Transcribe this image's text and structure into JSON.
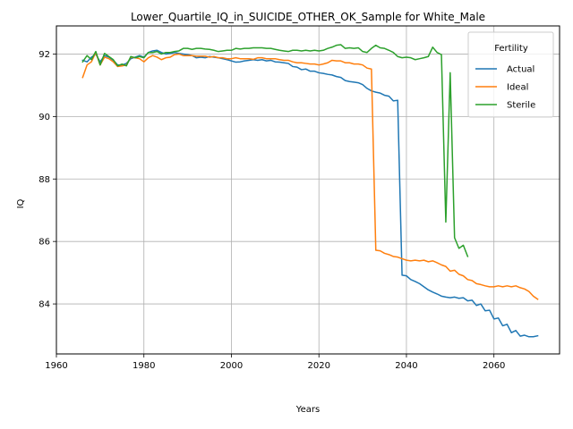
{
  "chart_data": {
    "type": "line",
    "title": "Lower_Quartile_IQ_in_SUICIDE_OTHER_OK_Sample for White_Male",
    "xlabel": "Years",
    "ylabel": "IQ",
    "xlim": [
      1960,
      2075
    ],
    "ylim": [
      82.4,
      92.9
    ],
    "xticks": [
      1960,
      1980,
      2000,
      2020,
      2040,
      2060
    ],
    "yticks": [
      84,
      86,
      88,
      90,
      92
    ],
    "grid": true,
    "legend": {
      "title": "Fertility",
      "position": "top-right"
    },
    "series": [
      {
        "name": "Actual",
        "color": "#1f77b4",
        "points": [
          [
            1966,
            91.8
          ],
          [
            1967,
            91.75
          ],
          [
            1968,
            91.9
          ],
          [
            1969,
            92.0
          ],
          [
            1970,
            91.75
          ],
          [
            1971,
            91.95
          ],
          [
            1972,
            91.9
          ],
          [
            1973,
            91.8
          ],
          [
            1974,
            91.65
          ],
          [
            1975,
            91.65
          ],
          [
            1976,
            91.7
          ],
          [
            1977,
            91.85
          ],
          [
            1978,
            91.9
          ],
          [
            1979,
            91.95
          ],
          [
            1980,
            91.9
          ],
          [
            1981,
            92.05
          ],
          [
            1982,
            92.1
          ],
          [
            1983,
            92.12
          ],
          [
            1984,
            92.05
          ],
          [
            1985,
            92.0
          ],
          [
            1986,
            92.02
          ],
          [
            1987,
            92.05
          ],
          [
            1988,
            92.02
          ],
          [
            1989,
            92.0
          ],
          [
            1990,
            91.98
          ],
          [
            1991,
            91.95
          ],
          [
            1992,
            91.88
          ],
          [
            1993,
            91.9
          ],
          [
            1994,
            91.88
          ],
          [
            1995,
            91.92
          ],
          [
            1996,
            91.9
          ],
          [
            1997,
            91.88
          ],
          [
            1998,
            91.85
          ],
          [
            1999,
            91.82
          ],
          [
            2000,
            91.78
          ],
          [
            2001,
            91.74
          ],
          [
            2002,
            91.75
          ],
          [
            2003,
            91.78
          ],
          [
            2004,
            91.8
          ],
          [
            2005,
            91.82
          ],
          [
            2006,
            91.8
          ],
          [
            2007,
            91.82
          ],
          [
            2008,
            91.78
          ],
          [
            2009,
            91.8
          ],
          [
            2010,
            91.75
          ],
          [
            2011,
            91.74
          ],
          [
            2012,
            91.72
          ],
          [
            2013,
            91.7
          ],
          [
            2014,
            91.6
          ],
          [
            2015,
            91.58
          ],
          [
            2016,
            91.5
          ],
          [
            2017,
            91.52
          ],
          [
            2018,
            91.45
          ],
          [
            2019,
            91.45
          ],
          [
            2020,
            91.4
          ],
          [
            2021,
            91.38
          ],
          [
            2022,
            91.35
          ],
          [
            2023,
            91.33
          ],
          [
            2024,
            91.28
          ],
          [
            2025,
            91.25
          ],
          [
            2026,
            91.15
          ],
          [
            2027,
            91.12
          ],
          [
            2028,
            91.1
          ],
          [
            2029,
            91.08
          ],
          [
            2030,
            91.02
          ],
          [
            2031,
            90.9
          ],
          [
            2032,
            90.82
          ],
          [
            2033,
            90.78
          ],
          [
            2034,
            90.75
          ],
          [
            2035,
            90.68
          ],
          [
            2036,
            90.65
          ],
          [
            2037,
            90.5
          ],
          [
            2038,
            90.52
          ],
          [
            2039,
            84.92
          ],
          [
            2040,
            84.9
          ],
          [
            2041,
            84.78
          ],
          [
            2042,
            84.72
          ],
          [
            2043,
            84.65
          ],
          [
            2044,
            84.55
          ],
          [
            2045,
            84.45
          ],
          [
            2046,
            84.38
          ],
          [
            2047,
            84.32
          ],
          [
            2048,
            84.25
          ],
          [
            2049,
            84.22
          ],
          [
            2050,
            84.2
          ],
          [
            2051,
            84.22
          ],
          [
            2052,
            84.18
          ],
          [
            2053,
            84.2
          ],
          [
            2054,
            84.1
          ],
          [
            2055,
            84.12
          ],
          [
            2056,
            83.95
          ],
          [
            2057,
            84.0
          ],
          [
            2058,
            83.78
          ],
          [
            2059,
            83.8
          ],
          [
            2060,
            83.52
          ],
          [
            2061,
            83.55
          ],
          [
            2062,
            83.3
          ],
          [
            2063,
            83.35
          ],
          [
            2064,
            83.08
          ],
          [
            2065,
            83.15
          ],
          [
            2066,
            82.97
          ],
          [
            2067,
            83.0
          ],
          [
            2068,
            82.95
          ],
          [
            2069,
            82.95
          ],
          [
            2070,
            82.98
          ]
        ]
      },
      {
        "name": "Ideal",
        "color": "#ff7f0e",
        "points": [
          [
            1966,
            91.25
          ],
          [
            1967,
            91.65
          ],
          [
            1968,
            91.75
          ],
          [
            1969,
            92.05
          ],
          [
            1970,
            91.65
          ],
          [
            1971,
            91.9
          ],
          [
            1972,
            91.85
          ],
          [
            1973,
            91.75
          ],
          [
            1974,
            91.6
          ],
          [
            1975,
            91.62
          ],
          [
            1976,
            91.65
          ],
          [
            1977,
            91.9
          ],
          [
            1978,
            91.88
          ],
          [
            1979,
            91.85
          ],
          [
            1980,
            91.75
          ],
          [
            1981,
            91.88
          ],
          [
            1982,
            91.95
          ],
          [
            1983,
            91.9
          ],
          [
            1984,
            91.82
          ],
          [
            1985,
            91.88
          ],
          [
            1986,
            91.9
          ],
          [
            1987,
            91.98
          ],
          [
            1988,
            92.0
          ],
          [
            1989,
            91.95
          ],
          [
            1990,
            91.95
          ],
          [
            1991,
            91.95
          ],
          [
            1992,
            91.93
          ],
          [
            1993,
            91.93
          ],
          [
            1994,
            91.93
          ],
          [
            1995,
            91.9
          ],
          [
            1996,
            91.92
          ],
          [
            1997,
            91.88
          ],
          [
            1998,
            91.88
          ],
          [
            1999,
            91.85
          ],
          [
            2000,
            91.85
          ],
          [
            2001,
            91.88
          ],
          [
            2002,
            91.85
          ],
          [
            2003,
            91.85
          ],
          [
            2004,
            91.85
          ],
          [
            2005,
            91.83
          ],
          [
            2006,
            91.88
          ],
          [
            2007,
            91.88
          ],
          [
            2008,
            91.85
          ],
          [
            2009,
            91.85
          ],
          [
            2010,
            91.85
          ],
          [
            2011,
            91.82
          ],
          [
            2012,
            91.8
          ],
          [
            2013,
            91.8
          ],
          [
            2014,
            91.75
          ],
          [
            2015,
            91.72
          ],
          [
            2016,
            91.72
          ],
          [
            2017,
            91.7
          ],
          [
            2018,
            91.68
          ],
          [
            2019,
            91.68
          ],
          [
            2020,
            91.65
          ],
          [
            2021,
            91.68
          ],
          [
            2022,
            91.72
          ],
          [
            2023,
            91.8
          ],
          [
            2024,
            91.78
          ],
          [
            2025,
            91.78
          ],
          [
            2026,
            91.72
          ],
          [
            2027,
            91.72
          ],
          [
            2028,
            91.68
          ],
          [
            2029,
            91.68
          ],
          [
            2030,
            91.65
          ],
          [
            2031,
            91.55
          ],
          [
            2032,
            91.52
          ],
          [
            2033,
            85.72
          ],
          [
            2034,
            85.7
          ],
          [
            2035,
            85.62
          ],
          [
            2036,
            85.58
          ],
          [
            2037,
            85.52
          ],
          [
            2038,
            85.5
          ],
          [
            2039,
            85.45
          ],
          [
            2040,
            85.4
          ],
          [
            2041,
            85.38
          ],
          [
            2042,
            85.4
          ],
          [
            2043,
            85.38
          ],
          [
            2044,
            85.4
          ],
          [
            2045,
            85.35
          ],
          [
            2046,
            85.38
          ],
          [
            2047,
            85.32
          ],
          [
            2048,
            85.25
          ],
          [
            2049,
            85.2
          ],
          [
            2050,
            85.05
          ],
          [
            2051,
            85.08
          ],
          [
            2052,
            84.95
          ],
          [
            2053,
            84.9
          ],
          [
            2054,
            84.78
          ],
          [
            2055,
            84.75
          ],
          [
            2056,
            84.65
          ],
          [
            2057,
            84.62
          ],
          [
            2058,
            84.58
          ],
          [
            2059,
            84.55
          ],
          [
            2060,
            84.55
          ],
          [
            2061,
            84.58
          ],
          [
            2062,
            84.55
          ],
          [
            2063,
            84.58
          ],
          [
            2064,
            84.55
          ],
          [
            2065,
            84.58
          ],
          [
            2066,
            84.52
          ],
          [
            2067,
            84.48
          ],
          [
            2068,
            84.4
          ],
          [
            2069,
            84.25
          ],
          [
            2070,
            84.15
          ]
        ]
      },
      {
        "name": "Sterile",
        "color": "#2ca02c",
        "points": [
          [
            1966,
            91.75
          ],
          [
            1967,
            91.95
          ],
          [
            1968,
            91.82
          ],
          [
            1969,
            92.08
          ],
          [
            1970,
            91.65
          ],
          [
            1971,
            92.02
          ],
          [
            1972,
            91.92
          ],
          [
            1973,
            91.82
          ],
          [
            1974,
            91.62
          ],
          [
            1975,
            91.68
          ],
          [
            1976,
            91.62
          ],
          [
            1977,
            91.92
          ],
          [
            1978,
            91.88
          ],
          [
            1979,
            91.92
          ],
          [
            1980,
            91.88
          ],
          [
            1981,
            92.05
          ],
          [
            1982,
            92.05
          ],
          [
            1983,
            92.08
          ],
          [
            1984,
            92.0
          ],
          [
            1985,
            92.05
          ],
          [
            1986,
            92.05
          ],
          [
            1987,
            92.08
          ],
          [
            1988,
            92.1
          ],
          [
            1989,
            92.18
          ],
          [
            1990,
            92.18
          ],
          [
            1991,
            92.15
          ],
          [
            1992,
            92.18
          ],
          [
            1993,
            92.18
          ],
          [
            1994,
            92.16
          ],
          [
            1995,
            92.15
          ],
          [
            1996,
            92.12
          ],
          [
            1997,
            92.08
          ],
          [
            1998,
            92.1
          ],
          [
            1999,
            92.12
          ],
          [
            2000,
            92.12
          ],
          [
            2001,
            92.18
          ],
          [
            2002,
            92.16
          ],
          [
            2003,
            92.18
          ],
          [
            2004,
            92.18
          ],
          [
            2005,
            92.2
          ],
          [
            2006,
            92.2
          ],
          [
            2007,
            92.2
          ],
          [
            2008,
            92.18
          ],
          [
            2009,
            92.18
          ],
          [
            2010,
            92.15
          ],
          [
            2011,
            92.12
          ],
          [
            2012,
            92.1
          ],
          [
            2013,
            92.08
          ],
          [
            2014,
            92.12
          ],
          [
            2015,
            92.12
          ],
          [
            2016,
            92.1
          ],
          [
            2017,
            92.12
          ],
          [
            2018,
            92.1
          ],
          [
            2019,
            92.12
          ],
          [
            2020,
            92.1
          ],
          [
            2021,
            92.12
          ],
          [
            2022,
            92.18
          ],
          [
            2023,
            92.22
          ],
          [
            2024,
            92.28
          ],
          [
            2025,
            92.3
          ],
          [
            2026,
            92.18
          ],
          [
            2027,
            92.2
          ],
          [
            2028,
            92.18
          ],
          [
            2029,
            92.2
          ],
          [
            2030,
            92.08
          ],
          [
            2031,
            92.05
          ],
          [
            2032,
            92.18
          ],
          [
            2033,
            92.28
          ],
          [
            2034,
            92.2
          ],
          [
            2035,
            92.18
          ],
          [
            2036,
            92.12
          ],
          [
            2037,
            92.05
          ],
          [
            2038,
            91.92
          ],
          [
            2039,
            91.88
          ],
          [
            2040,
            91.9
          ],
          [
            2041,
            91.88
          ],
          [
            2042,
            91.82
          ],
          [
            2043,
            91.85
          ],
          [
            2044,
            91.88
          ],
          [
            2045,
            91.92
          ],
          [
            2046,
            92.22
          ],
          [
            2047,
            92.05
          ],
          [
            2048,
            91.98
          ],
          [
            2049,
            86.62
          ],
          [
            2050,
            91.4
          ],
          [
            2051,
            86.12
          ],
          [
            2052,
            85.78
          ],
          [
            2053,
            85.88
          ],
          [
            2054,
            85.52
          ]
        ]
      }
    ]
  }
}
